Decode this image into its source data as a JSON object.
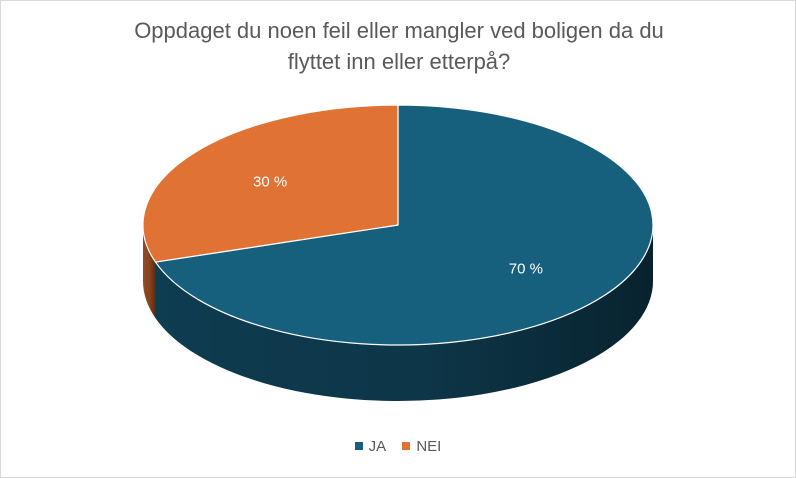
{
  "chart_data": {
    "type": "pie",
    "title_lines": [
      "Oppdaget du noen feil eller mangler ved boligen da du",
      "flyttet inn eller etterpå?"
    ],
    "categories": [
      "JA",
      "NEI"
    ],
    "values": [
      70,
      30
    ],
    "data_labels": [
      "70 %",
      "30 %"
    ],
    "colors": [
      "#16607d",
      "#e07333"
    ],
    "side_colors": [
      "#0f3f54",
      "#9c4f23"
    ],
    "legend_position": "bottom",
    "style": "3d"
  }
}
